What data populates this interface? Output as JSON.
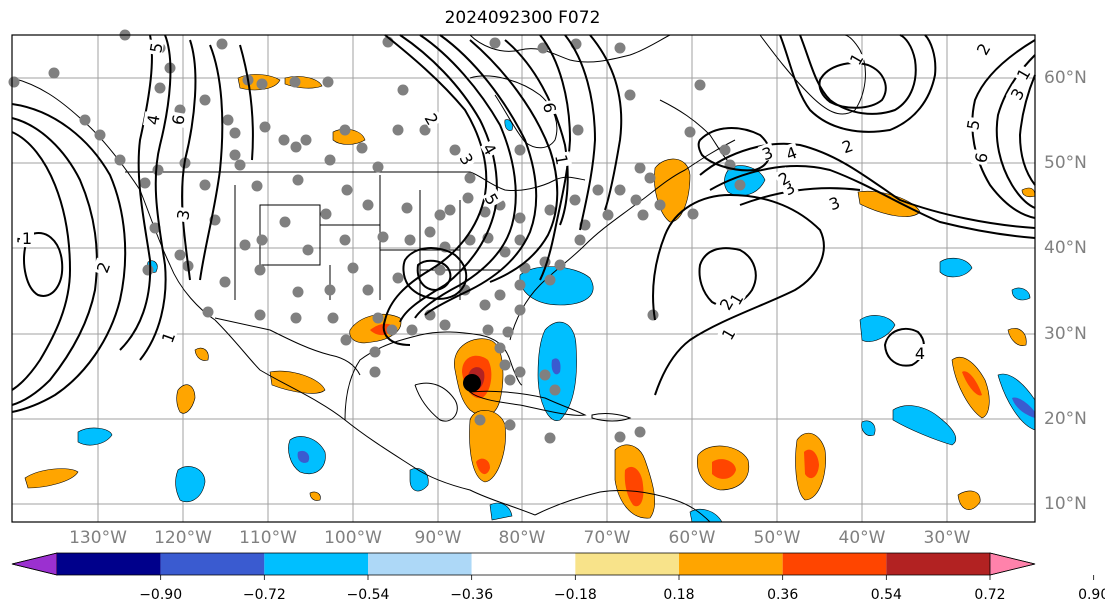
{
  "title": "2024092300 F072",
  "lon_labels": [
    "130°W",
    "120°W",
    "110°W",
    "100°W",
    "90°W",
    "80°W",
    "70°W",
    "60°W",
    "50°W",
    "40°W",
    "30°W"
  ],
  "lat_labels": [
    "60°N",
    "50°N",
    "40°N",
    "30°N",
    "20°N",
    "10°N"
  ],
  "colorbar": {
    "ticks": [
      "−0.90",
      "−0.72",
      "−0.54",
      "−0.36",
      "−0.18",
      "0.18",
      "0.36",
      "0.54",
      "0.72",
      "0.90"
    ],
    "colors": [
      "#9b30d0",
      "#00008b",
      "#3a5bd0",
      "#00bfff",
      "#add8f7",
      "#ffffff",
      "#f8e38a",
      "#ffa500",
      "#ff4500",
      "#b22222",
      "#ff82ab"
    ]
  },
  "contour_labels": [
    "1",
    "2",
    "3",
    "4",
    "5",
    "6",
    "1",
    "2",
    "3",
    "4",
    "5",
    "6",
    "1",
    "2",
    "3",
    "4",
    "5",
    "6",
    "1",
    "2",
    "3",
    "1",
    "2",
    "1",
    "2",
    "3",
    "4",
    "1",
    "1",
    "3"
  ],
  "colors": {
    "contour": "#000000",
    "land": "#000000",
    "grid": "#a0a0a0",
    "station": "#808080",
    "storm_center": "#000000"
  }
}
